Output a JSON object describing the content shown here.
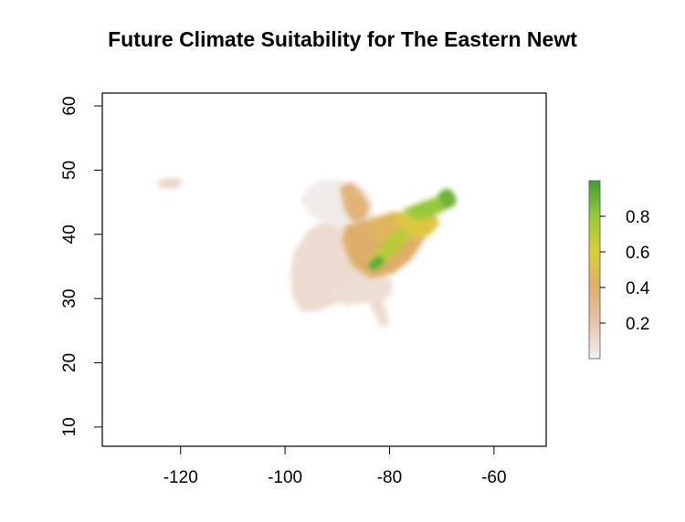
{
  "chart_data": {
    "type": "heatmap",
    "title": "Future Climate Suitability for The Eastern Newt",
    "xlabel": "",
    "ylabel": "",
    "xlim": [
      -135,
      -50
    ],
    "ylim": [
      7,
      62
    ],
    "x_ticks": [
      -120,
      -100,
      -80,
      -60
    ],
    "y_ticks": [
      10,
      20,
      30,
      40,
      50,
      60
    ],
    "grid": false,
    "legend_placement": "right",
    "color_scale": {
      "ticks": [
        0.2,
        0.4,
        0.6,
        0.8
      ],
      "range": [
        0,
        1
      ],
      "stops": [
        {
          "value": 0.0,
          "color": "#f2f2f2"
        },
        {
          "value": 0.2,
          "color": "#e7c2ad"
        },
        {
          "value": 0.4,
          "color": "#dfae69"
        },
        {
          "value": 0.6,
          "color": "#d9cf37"
        },
        {
          "value": 0.8,
          "color": "#96c83a"
        },
        {
          "value": 1.0,
          "color": "#3f9e3a"
        }
      ]
    },
    "regions": [
      {
        "region": "pacific-northwest-patch",
        "suitability": 0.12
      },
      {
        "region": "northern-plains-great-lakes-west",
        "suitability": 0.03
      },
      {
        "region": "southern-plains",
        "suitability": 0.1
      },
      {
        "region": "gulf-coast-southeast",
        "suitability": 0.08
      },
      {
        "region": "florida",
        "suitability": 0.1
      },
      {
        "region": "great-lakes-michigan",
        "suitability": 0.35
      },
      {
        "region": "ohio-valley",
        "suitability": 0.4
      },
      {
        "region": "central-appalachia",
        "suitability": 0.45
      },
      {
        "region": "appalachian-highlands",
        "suitability": 0.7
      },
      {
        "region": "mid-atlantic",
        "suitability": 0.55
      },
      {
        "region": "northeast-new-england",
        "suitability": 0.8
      },
      {
        "region": "maine-highlands",
        "suitability": 0.9
      },
      {
        "region": "southern-blue-ridge",
        "suitability": 0.95
      }
    ]
  }
}
